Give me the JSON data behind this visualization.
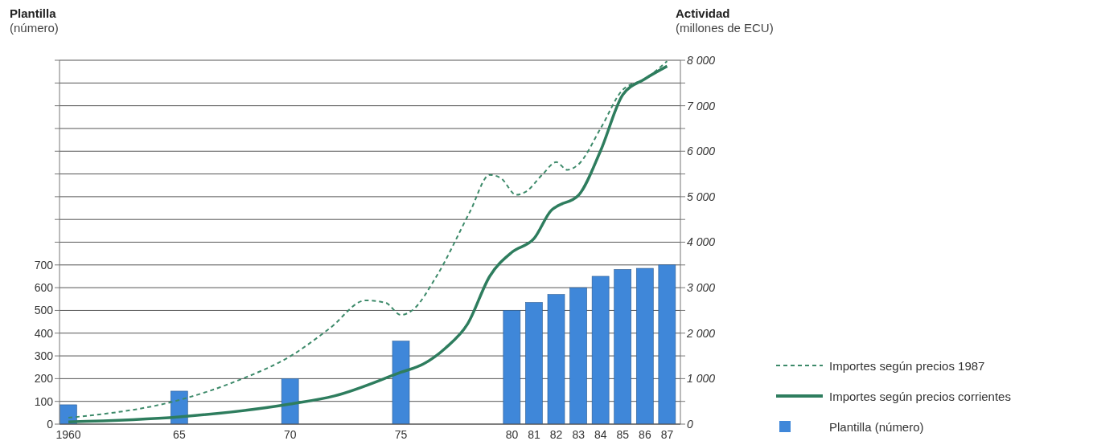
{
  "chart_data": {
    "type": "bar",
    "ylabel": "Plantilla\n(número)",
    "y2label": "Actividad\n(millones de ECU)",
    "x": [
      1960,
      1965,
      1970,
      1975,
      1980,
      1981,
      1982,
      1983,
      1984,
      1985,
      1986,
      1987
    ],
    "xlim": [
      1959.6,
      1987.6
    ],
    "xticks": [
      {
        "value": 1960,
        "label": "1960"
      },
      {
        "value": 1965,
        "label": "65"
      },
      {
        "value": 1970,
        "label": "70"
      },
      {
        "value": 1975,
        "label": "75"
      },
      {
        "value": 1980,
        "label": "80"
      },
      {
        "value": 1981,
        "label": "81"
      },
      {
        "value": 1982,
        "label": "82"
      },
      {
        "value": 1983,
        "label": "83"
      },
      {
        "value": 1984,
        "label": "84"
      },
      {
        "value": 1985,
        "label": "85"
      },
      {
        "value": 1986,
        "label": "86"
      },
      {
        "value": 1987,
        "label": "87"
      }
    ],
    "ylim": [
      0,
      1600
    ],
    "yticks": [
      0,
      100,
      200,
      300,
      400,
      500,
      600,
      700,
      {
        "value": 800,
        "label": null
      },
      {
        "value": 900,
        "label": null
      },
      {
        "value": 1000,
        "label": null
      },
      {
        "value": 1100,
        "label": null
      },
      {
        "value": 1200,
        "label": null
      },
      {
        "value": 1300,
        "label": null
      },
      {
        "value": 1400,
        "label": null
      },
      {
        "value": 1500,
        "label": null
      },
      {
        "value": 1600,
        "label": null
      }
    ],
    "y2lim": [
      0,
      8000
    ],
    "y2ticks": [
      0,
      {
        "value": 500,
        "label": null
      },
      {
        "value": 1000,
        "label": "1 000"
      },
      {
        "value": 1500,
        "label": null
      },
      {
        "value": 2000,
        "label": "2 000"
      },
      {
        "value": 2500,
        "label": null
      },
      {
        "value": 3000,
        "label": "3 000"
      },
      {
        "value": 3500,
        "label": null
      },
      {
        "value": 4000,
        "label": "4 000"
      },
      {
        "value": 4500,
        "label": null
      },
      {
        "value": 5000,
        "label": "5 000"
      },
      {
        "value": 5500,
        "label": null
      },
      {
        "value": 6000,
        "label": "6 000"
      },
      {
        "value": 6500,
        "label": null
      },
      {
        "value": 7000,
        "label": "7 000"
      },
      {
        "value": 7500,
        "label": null
      },
      {
        "value": 8000,
        "label": "8 000"
      }
    ],
    "grid": "y",
    "legend": "right",
    "marker": "none",
    "series": [
      {
        "name": "Importes según precios 1987",
        "type": "line",
        "axis": "y2",
        "color": "#3d8a6a",
        "line_style": "dashed",
        "x": [
          1960,
          1965,
          1967.7,
          1970,
          1971.8,
          1973.4,
          1974.3,
          1975,
          1975.5,
          1976.6,
          1978.1,
          1979,
          1979.5,
          1980.2,
          1980.6,
          1981.4,
          1982,
          1982.5,
          1983,
          1984,
          1985,
          1986,
          1987
        ],
        "values": [
          140,
          530,
          970,
          1490,
          2110,
          2720,
          2670,
          2400,
          2500,
          3250,
          4660,
          5480,
          5410,
          5040,
          5100,
          5500,
          5760,
          5590,
          5710,
          6500,
          7350,
          7590,
          7980
        ]
      },
      {
        "name": "Importes según precios corrientes",
        "type": "line",
        "axis": "y2",
        "color": "#2e7d5e",
        "line_style": "solid",
        "x": [
          1960,
          1965,
          1970,
          1972,
          1975,
          1976,
          1977,
          1978,
          1979,
          1980,
          1981,
          1981.8,
          1982,
          1983,
          1984,
          1985,
          1986,
          1987
        ],
        "values": [
          50,
          160,
          440,
          620,
          1140,
          1320,
          1670,
          2200,
          3250,
          3780,
          4080,
          4710,
          4780,
          5030,
          6010,
          7240,
          7590,
          7870
        ]
      },
      {
        "name": "Plantilla (número)",
        "color": "#3f87d9",
        "values": [
          85,
          145,
          200,
          365,
          500,
          535,
          570,
          600,
          650,
          680,
          685,
          700
        ]
      }
    ]
  }
}
